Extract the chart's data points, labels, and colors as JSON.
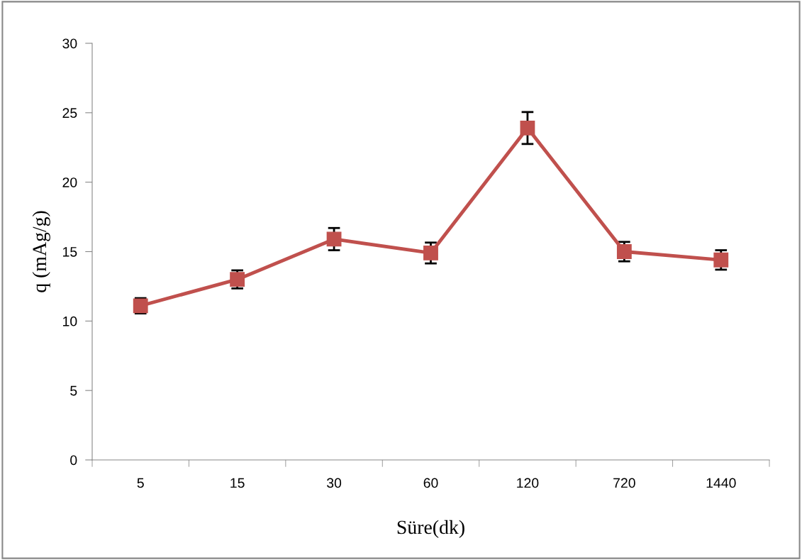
{
  "chart_data": {
    "type": "line",
    "xlabel": "Süre(dk)",
    "ylabel": "q (mAg/g)",
    "categories": [
      "5",
      "15",
      "30",
      "60",
      "120",
      "720",
      "1440"
    ],
    "series": [
      {
        "color": "#c0504d",
        "values": [
          11.1,
          13.0,
          15.9,
          14.9,
          23.9,
          15.0,
          14.4
        ],
        "errors": [
          0.55,
          0.65,
          0.8,
          0.75,
          1.15,
          0.7,
          0.7
        ]
      }
    ],
    "marker": "square",
    "line_style": "solid",
    "ylim": [
      0,
      30
    ],
    "yticks": [
      0,
      5,
      10,
      15,
      20,
      25,
      30
    ],
    "grid": false,
    "legend": false
  }
}
